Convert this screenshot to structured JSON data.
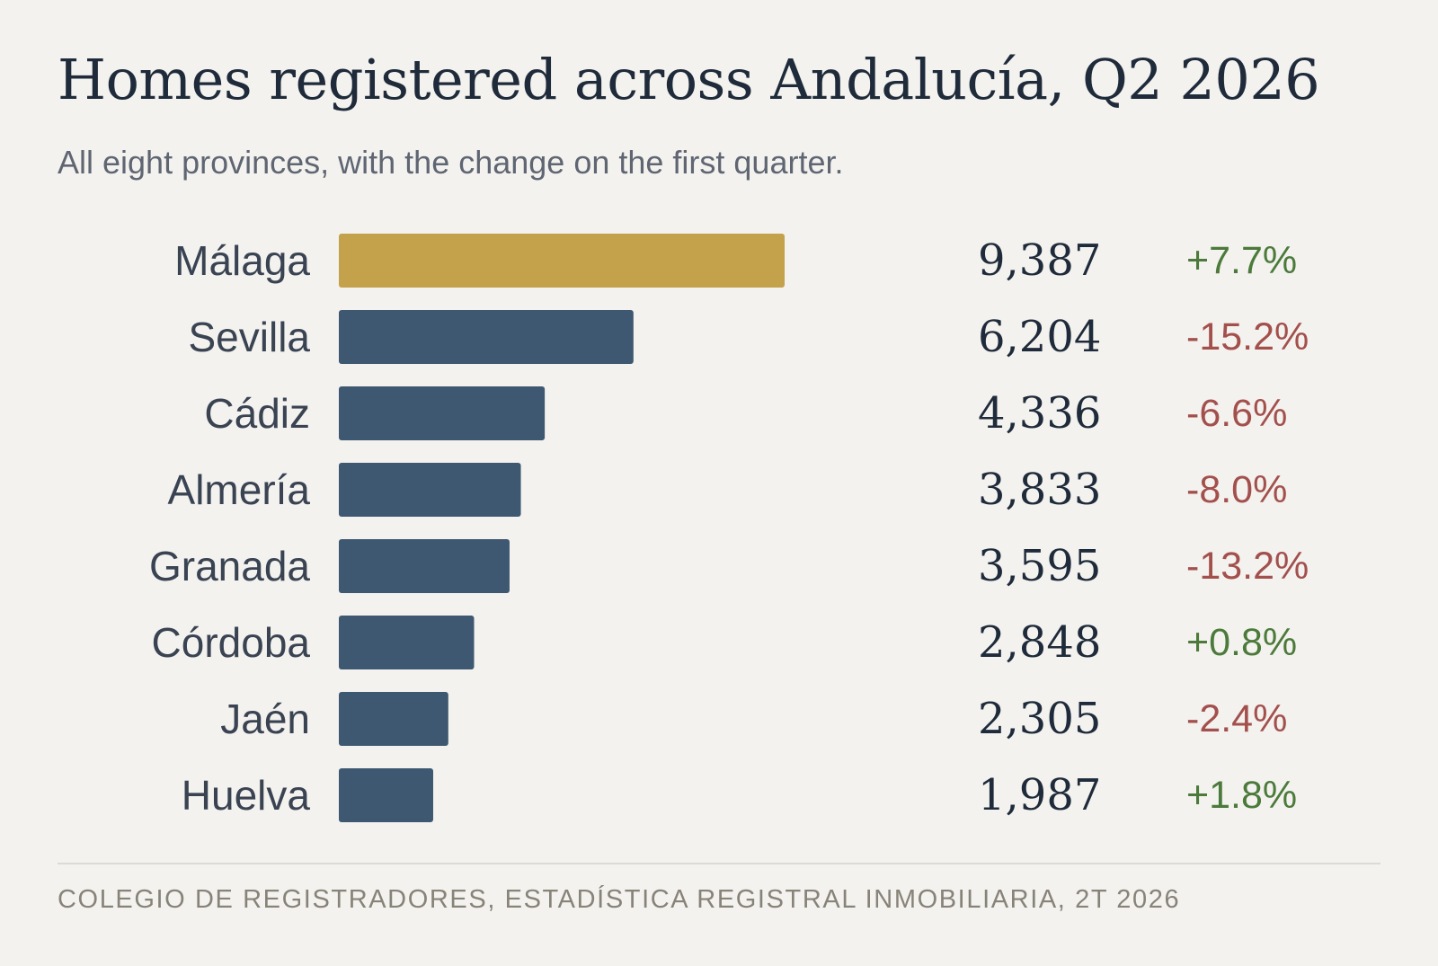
{
  "title": "Homes registered across Andalucía, Q2 2026",
  "subtitle": "All eight provinces, with the change on the first quarter.",
  "source": "COLEGIO DE REGISTRADORES, ESTADÍSTICA REGISTRAL INMOBILIARIA, 2T 2026",
  "colors": {
    "highlight_bar": "#c4a24c",
    "bar": "#3d5870",
    "positive": "#4b7a3a",
    "negative": "#a3504d",
    "value_text": "#1f2b3a",
    "label_text": "#3a4352"
  },
  "chart_data": {
    "type": "bar",
    "orientation": "horizontal",
    "highlight": "Málaga",
    "categories": [
      "Málaga",
      "Sevilla",
      "Cádiz",
      "Almería",
      "Granada",
      "Córdoba",
      "Jaén",
      "Huelva"
    ],
    "values": [
      9387,
      6204,
      4336,
      3833,
      3595,
      2848,
      2305,
      1987
    ],
    "value_labels": [
      "9,387",
      "6,204",
      "4,336",
      "3,833",
      "3,595",
      "2,848",
      "2,305",
      "1,987"
    ],
    "change_labels": [
      "+7.7%",
      "-15.2%",
      "-6.6%",
      "-8.0%",
      "-13.2%",
      "+0.8%",
      "-2.4%",
      "+1.8%"
    ],
    "change_values": [
      7.7,
      -15.2,
      -6.6,
      -8.0,
      -13.2,
      0.8,
      -2.4,
      1.8
    ],
    "grid": false,
    "legend": "none"
  }
}
